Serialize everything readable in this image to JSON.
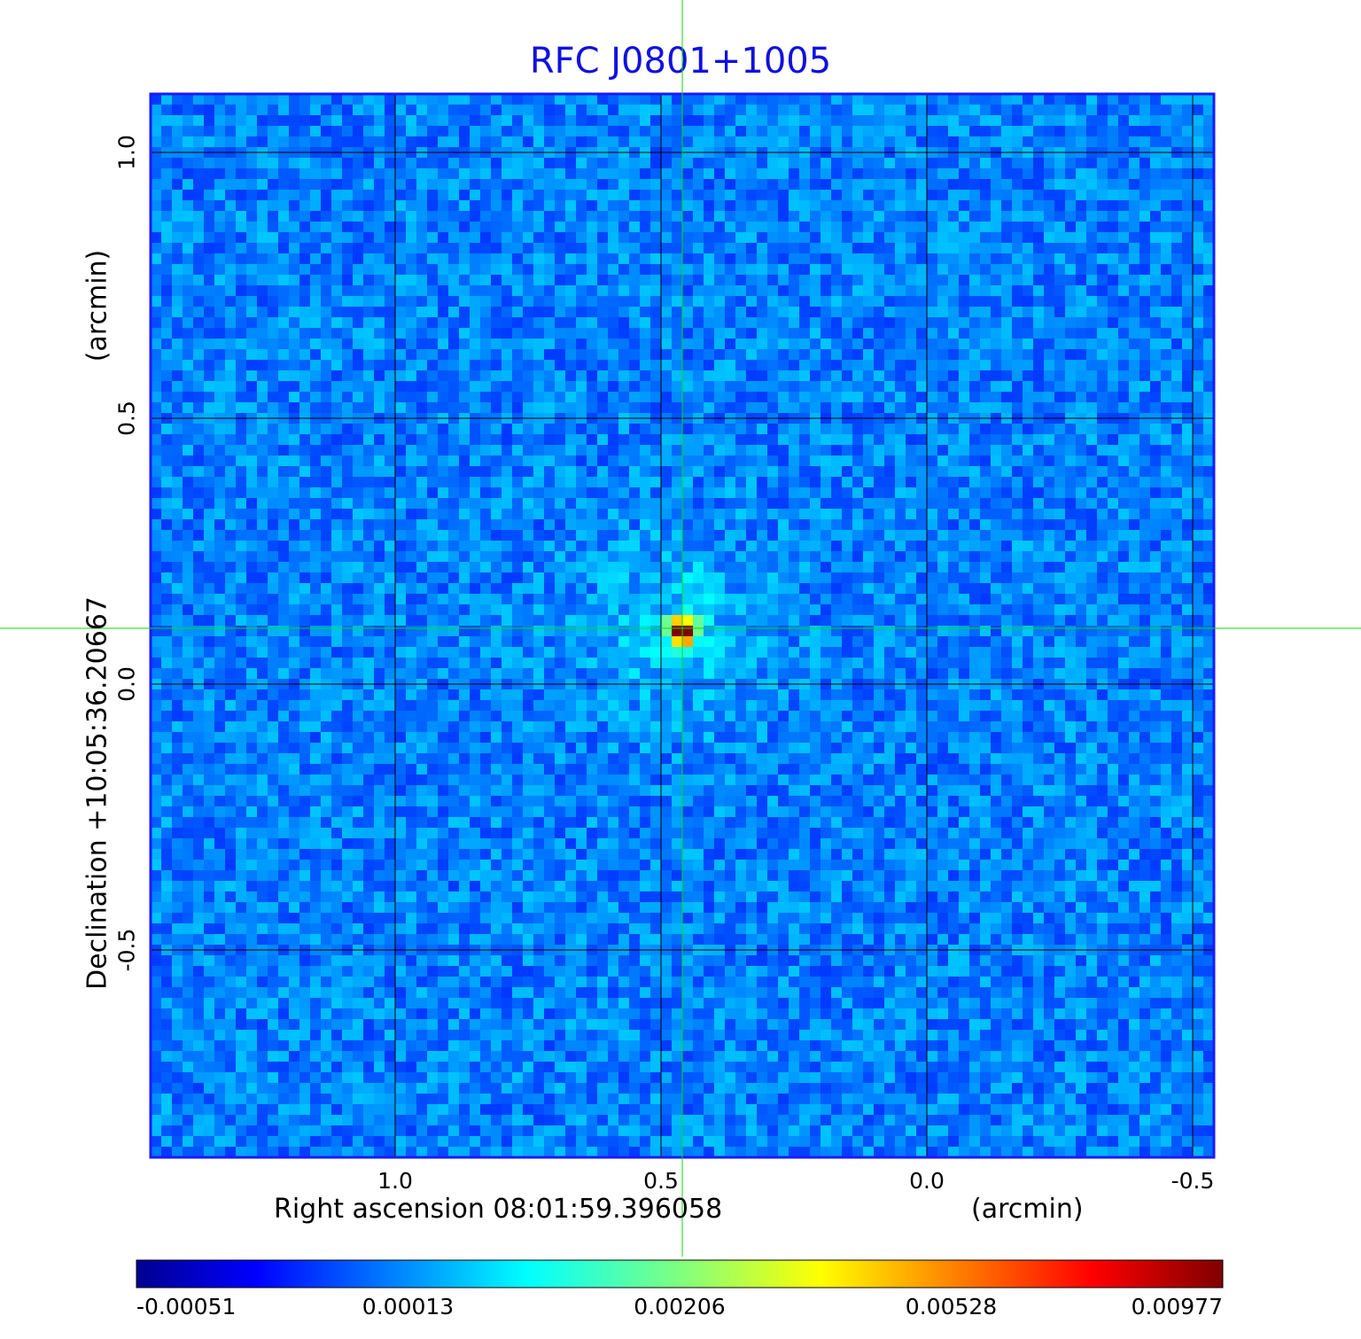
{
  "chart_data": {
    "type": "heatmap",
    "title": "RFC J0801+1005",
    "xlabel": "Right ascension  08:01:59.396058",
    "xunit": "(arcmin)",
    "ylabel": "Declination  +10:05:36.20667",
    "yunit": "(arcmin)",
    "xticks": [
      "1.0",
      "0.5",
      "0.0",
      "-0.5"
    ],
    "yticks": [
      "1.0",
      "0.5",
      "0.0",
      "-0.5"
    ],
    "xlim": [
      1.46,
      -0.54
    ],
    "ylim": [
      -0.89,
      1.11
    ],
    "grid": true,
    "colormap": "jet",
    "colorbar": {
      "ticks": [
        "-0.00051",
        "0.00013",
        "0.00206",
        "0.00528",
        "0.00977"
      ],
      "range": [
        -0.00051,
        0.00977
      ]
    },
    "source_peak": {
      "ra_offset_arcmin": 0.46,
      "dec_offset_arcmin": 0.1,
      "value": 0.00977
    },
    "crosshair": {
      "ra_offset_arcmin": 0.46,
      "dec_offset_arcmin": 0.105
    }
  },
  "colors": {
    "title": "#1010e0",
    "frame": "#1a1aff",
    "grid": "#000000",
    "crosshair": "#00e000"
  }
}
